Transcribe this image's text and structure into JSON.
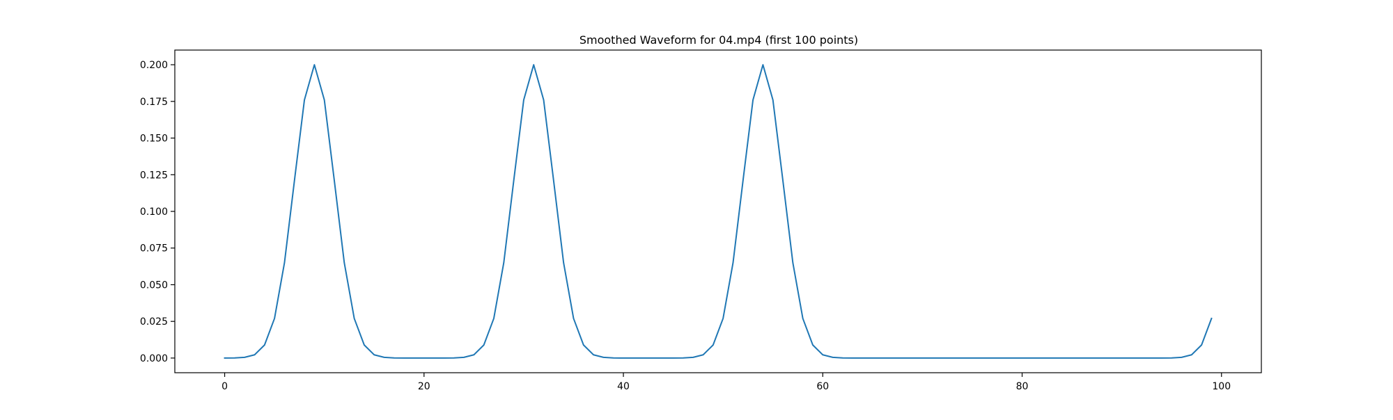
{
  "chart_data": {
    "type": "line",
    "title": "Smoothed Waveform for 04.mp4 (first 100 points)",
    "xlabel": "",
    "ylabel": "",
    "xlim": [
      -5,
      104
    ],
    "ylim": [
      -0.01,
      0.21
    ],
    "xticks": [
      0,
      20,
      40,
      60,
      80,
      100
    ],
    "xtick_labels": [
      "0",
      "20",
      "40",
      "60",
      "80",
      "100"
    ],
    "yticks": [
      0.0,
      0.025,
      0.05,
      0.075,
      0.1,
      0.125,
      0.15,
      0.175,
      0.2
    ],
    "ytick_labels": [
      "0.000",
      "0.025",
      "0.050",
      "0.075",
      "0.100",
      "0.125",
      "0.150",
      "0.175",
      "0.200"
    ],
    "grid": false,
    "line_color": "#1f77b4",
    "series": [
      {
        "x": [
          0,
          1,
          2,
          3,
          4,
          5,
          6,
          7,
          8,
          9,
          10,
          11,
          12,
          13,
          14,
          15,
          16,
          17,
          18,
          19,
          20,
          21,
          22,
          23,
          24,
          25,
          26,
          27,
          28,
          29,
          30,
          31,
          32,
          33,
          34,
          35,
          36,
          37,
          38,
          39,
          40,
          41,
          42,
          43,
          44,
          45,
          46,
          47,
          48,
          49,
          50,
          51,
          52,
          53,
          54,
          55,
          56,
          57,
          58,
          59,
          60,
          61,
          62,
          63,
          64,
          65,
          66,
          67,
          68,
          69,
          70,
          71,
          72,
          73,
          74,
          75,
          76,
          77,
          78,
          79,
          80,
          81,
          82,
          83,
          84,
          85,
          86,
          87,
          88,
          89,
          90,
          91,
          92,
          93,
          94,
          95,
          96,
          97,
          98,
          99
        ],
        "values": [
          0.0,
          0.0001,
          0.0005,
          0.0022,
          0.0089,
          0.027,
          0.065,
          0.121,
          0.176,
          0.2,
          0.176,
          0.121,
          0.065,
          0.027,
          0.0089,
          0.0022,
          0.0005,
          0.0001,
          0.0,
          0.0,
          0.0,
          0.0,
          0.0,
          0.0001,
          0.0005,
          0.0022,
          0.0089,
          0.027,
          0.065,
          0.121,
          0.176,
          0.2,
          0.176,
          0.121,
          0.065,
          0.027,
          0.0089,
          0.0022,
          0.0005,
          0.0001,
          0.0,
          0.0,
          0.0,
          0.0,
          0.0,
          0.0,
          0.0001,
          0.0005,
          0.0022,
          0.0089,
          0.027,
          0.065,
          0.121,
          0.176,
          0.2,
          0.176,
          0.121,
          0.065,
          0.027,
          0.0089,
          0.0022,
          0.0005,
          0.0001,
          0.0,
          0.0,
          0.0,
          0.0,
          0.0,
          0.0,
          0.0,
          0.0,
          0.0,
          0.0,
          0.0,
          0.0,
          0.0,
          0.0,
          0.0,
          0.0,
          0.0,
          0.0,
          0.0,
          0.0,
          0.0,
          0.0,
          0.0,
          0.0,
          0.0,
          0.0,
          0.0,
          0.0,
          0.0,
          0.0,
          0.0,
          0.0,
          0.0001,
          0.0005,
          0.0022,
          0.0089,
          0.027
        ]
      }
    ]
  }
}
